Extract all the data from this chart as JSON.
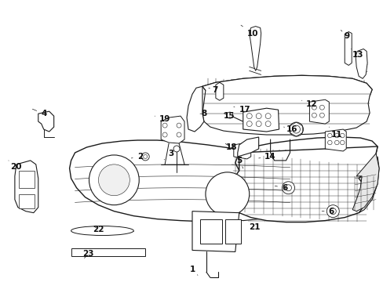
{
  "bg_color": "#ffffff",
  "line_color": "#1a1a1a",
  "label_color": "#111111",
  "figsize": [
    4.89,
    3.6
  ],
  "dpi": 100,
  "parts": {
    "bumper_main": {
      "color": "#1a1a1a",
      "lw": 1.0
    },
    "impact_bar": {
      "color": "#1a1a1a",
      "lw": 1.0
    }
  },
  "label_fontsize": 7.5,
  "arrow_lw": 0.5
}
